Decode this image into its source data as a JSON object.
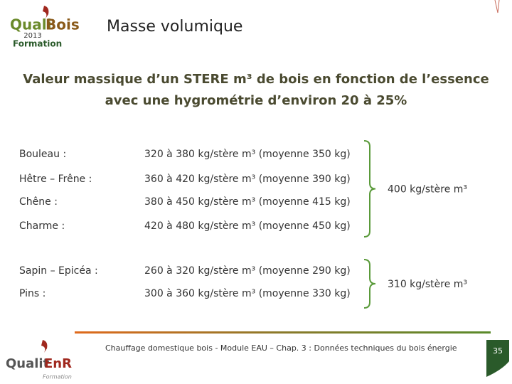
{
  "header": {
    "title": "Masse volumique",
    "logo": {
      "brand_a": "Quali",
      "brand_b": "Bois",
      "year": "2013",
      "tagline": "Formation"
    }
  },
  "subtitle": {
    "lines": [
      "Valeur massique d’un STERE m³ de bois en fonction de l’essence",
      "avec une hygrométrie d’environ 20 à 25%"
    ]
  },
  "groups": [
    {
      "rows": [
        [
          "Bouleau :",
          "320 à 380 kg/stère m³ (moyenne 350 kg)"
        ],
        [
          "Hêtre – Frêne :",
          "360 à 420 kg/stère m³ (moyenne 390 kg)"
        ],
        [
          "Chêne :",
          "380 à 450 kg/stère m³ (moyenne 415 kg)"
        ],
        [
          "Charme :",
          "420 à 480 kg/stère m³ (moyenne 450 kg)"
        ]
      ],
      "summary": "400 kg/stère m³"
    },
    {
      "rows": [
        [
          "Sapin – Epicéa :",
          "260 à 320 kg/stère m³ (moyenne 290 kg)"
        ],
        [
          "Pins :",
          "300 à 360 kg/stère m³ (moyenne 330 kg)"
        ]
      ],
      "summary": "310 kg/stère m³"
    }
  ],
  "footer": {
    "text": "Chauffage domestique bois - Module EAU – Chap. 3 : Données techniques du bois énergie",
    "page": "35",
    "logo": {
      "brand_a": "Qualit",
      "brand_b": "EnR",
      "tagline": "Formation"
    }
  }
}
